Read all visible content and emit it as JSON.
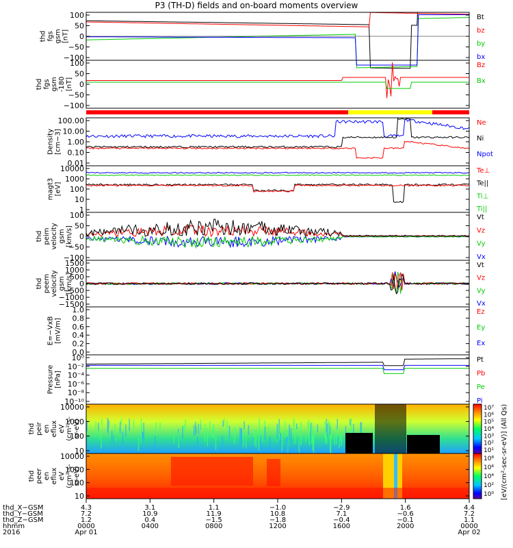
{
  "title": "P3 (TH-D) fields and on-board moments overview",
  "chart_data": {
    "type": "line",
    "title": "P3 (TH-D) fields and on-board moments overview",
    "x_range": [
      "2016-04-01 00:00",
      "2016-04-02 00:00"
    ],
    "panels": [
      {
        "id": "fgs",
        "ylabel": [
          "thd",
          "fgs",
          "gsm",
          "[nT]"
        ],
        "yticks": [
          "100",
          "50",
          "0",
          "−50",
          "−100"
        ],
        "ylim": [
          -100,
          100
        ],
        "legend": [
          {
            "name": "Bt",
            "color": "#000000"
          },
          {
            "name": "bz",
            "color": "#ff0000"
          },
          {
            "name": "by",
            "color": "#00cc00"
          },
          {
            "name": "bx",
            "color": "#0000ff"
          }
        ]
      },
      {
        "id": "fgs_dsl",
        "ylabel": [
          "thd",
          "fgs",
          "gsm",
          "-180",
          "[nT]"
        ],
        "yticks": [
          "100",
          "50",
          "0",
          "−50",
          "−100"
        ],
        "ylim": [
          -130,
          100
        ],
        "legend": [
          {
            "name": "Bz",
            "color": "#ff0000"
          },
          {
            "name": "Bx",
            "color": "#00cc00"
          }
        ]
      },
      {
        "id": "density",
        "ylabel": [
          "Density",
          "[cm−3]"
        ],
        "yticks": [
          "100.00",
          "10.00",
          "1.00",
          "0.10",
          "0.01"
        ],
        "scale": "log",
        "legend": [
          {
            "name": "Ne",
            "color": "#ff0000"
          },
          {
            "name": "Ni",
            "color": "#000000"
          },
          {
            "name": "Npot",
            "color": "#0000ff"
          }
        ]
      },
      {
        "id": "temp",
        "ylabel": [
          "magt3",
          "[eV]"
        ],
        "yticks": [
          "10000",
          "1000",
          "100",
          "10",
          "1"
        ],
        "scale": "log",
        "legend": [
          {
            "name": "Te⊥",
            "color": "#ff0000"
          },
          {
            "name": "Te||",
            "color": "#000000"
          },
          {
            "name": "Ti⊥",
            "color": "#00cc00"
          },
          {
            "name": "Ti||",
            "color": "#00cc00"
          }
        ]
      },
      {
        "id": "peim_v",
        "ylabel": [
          "thd",
          "peim",
          "velocity",
          "gsm",
          "[km/s]"
        ],
        "yticks": [
          "100",
          "50",
          "0",
          "−50",
          "−100"
        ],
        "ylim": [
          -100,
          100
        ],
        "legend": [
          {
            "name": "Vt",
            "color": "#000000"
          },
          {
            "name": "Vz",
            "color": "#ff0000"
          },
          {
            "name": "Vy",
            "color": "#00cc00"
          },
          {
            "name": "Vx",
            "color": "#0000ff"
          }
        ]
      },
      {
        "id": "peem_v",
        "ylabel": [
          "thd",
          "peem",
          "velocity",
          "gsm",
          "[km/s]"
        ],
        "yticks": [
          "1500",
          "1000",
          "500",
          "0",
          "−500",
          "−1000",
          "−1500"
        ],
        "ylim": [
          -1500,
          1500
        ],
        "legend": [
          {
            "name": "Vt",
            "color": "#000000"
          },
          {
            "name": "Vz",
            "color": "#ff0000"
          },
          {
            "name": "Vy",
            "color": "#00cc00"
          },
          {
            "name": "Vx",
            "color": "#0000ff"
          }
        ]
      },
      {
        "id": "efield",
        "ylabel": [
          "E=−VxB",
          "[mV/m]"
        ],
        "yticks": [
          "1.0",
          "0.8",
          "0.6",
          "0.4",
          "0.2",
          "0.0"
        ],
        "ylim": [
          0,
          1
        ],
        "legend": [
          {
            "name": "Ez",
            "color": "#ff0000"
          },
          {
            "name": "Ey",
            "color": "#00cc00"
          },
          {
            "name": "Ex",
            "color": "#0000ff"
          }
        ]
      },
      {
        "id": "pressure",
        "ylabel": [
          "Pressure",
          "[nPa]"
        ],
        "yticks": [
          "10⁰",
          "10⁻²",
          "10⁻⁴",
          "10⁻⁶",
          "10⁻⁸",
          "10⁻¹⁰"
        ],
        "scale": "log",
        "legend": [
          {
            "name": "Pt",
            "color": "#000000"
          },
          {
            "name": "Pb",
            "color": "#ff0000"
          },
          {
            "name": "Pe",
            "color": "#00cc00"
          },
          {
            "name": "Pi",
            "color": "#0000ff"
          }
        ]
      },
      {
        "id": "peir",
        "ylabel": [
          "thd",
          "peir",
          "en",
          "eflux",
          "eV",
          "(cm²-s-",
          "sr-eV)"
        ],
        "yticks": [
          "10000",
          "1000",
          "100",
          "10"
        ],
        "scale": "log"
      },
      {
        "id": "peer",
        "ylabel": [
          "thd",
          "peer",
          "en",
          "eflux",
          "eV",
          "(cm²-s-",
          "sr-eV)"
        ],
        "yticks": [
          "10000",
          "1000",
          "100",
          "10"
        ],
        "scale": "log"
      }
    ],
    "colorbar": {
      "label": "[eV/(cm²-sec-sr-eV)] (All Qs)",
      "peir_ticks": [
        "10⁷",
        "10⁶",
        "10⁵",
        "10⁴",
        "10³",
        "10²",
        "10¹"
      ],
      "peer_ticks": [
        "10⁸",
        "10⁶",
        "10⁴",
        "10²",
        "10⁰"
      ]
    },
    "x_axis": {
      "row_labels": [
        "thd_X−GSM",
        "thd_Y−GSM",
        "thd_Z−GSM",
        "hhmm",
        "2016"
      ],
      "columns": [
        {
          "x": "4.3",
          "y": "7.2",
          "z": "1.2",
          "hhmm": "0000",
          "date": "Apr 01"
        },
        {
          "x": "3.1",
          "y": "10.9",
          "z": "0.4",
          "hhmm": "0400",
          "date": ""
        },
        {
          "x": "1.1",
          "y": "11.9",
          "z": "−1.5",
          "hhmm": "0800",
          "date": ""
        },
        {
          "x": "−1.0",
          "y": "10.8",
          "z": "−1.8",
          "hhmm": "1200",
          "date": ""
        },
        {
          "x": "−2.9",
          "y": "7.1",
          "z": "−0.4",
          "hhmm": "1600",
          "date": ""
        },
        {
          "x": "1.6",
          "y": "−0.6",
          "z": "−0.1",
          "hhmm": "2000",
          "date": ""
        },
        {
          "x": "4.4",
          "y": "7.2",
          "z": "1.1",
          "hhmm": "0000",
          "date": "Apr 02"
        }
      ]
    }
  }
}
